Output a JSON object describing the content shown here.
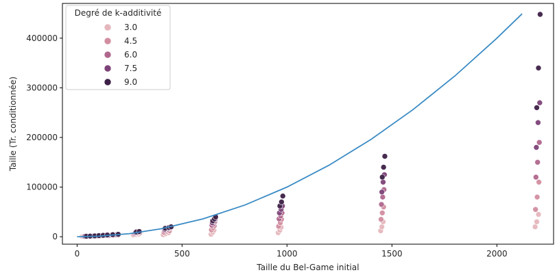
{
  "chart_data": {
    "type": "scatter",
    "title": "",
    "xlabel": "Taille du Bel-Game initial",
    "ylabel": "Taille (Tr. conditionnée)",
    "xlim": [
      -70,
      2270
    ],
    "ylim": [
      -15000,
      470000
    ],
    "xticks": [
      0,
      500,
      1000,
      1500,
      2000
    ],
    "yticks": [
      0,
      100000,
      200000,
      300000,
      400000
    ],
    "grid": false,
    "legend": {
      "title": "Degré de k-additivité",
      "placement": "top-left",
      "entries": [
        {
          "label": "3.0",
          "color": "#e5b7bd"
        },
        {
          "label": "4.5",
          "color": "#d28ea0"
        },
        {
          "label": "6.0",
          "color": "#b0678d"
        },
        {
          "label": "7.5",
          "color": "#7d4378"
        },
        {
          "label": "9.0",
          "color": "#3d2147"
        }
      ]
    },
    "series": [
      {
        "type": "line",
        "color": "#3a8bc4",
        "x": [
          0,
          100,
          250,
          400,
          600,
          800,
          1000,
          1200,
          1400,
          1600,
          1800,
          2000,
          2120
        ],
        "y": [
          0,
          1000,
          6200,
          16000,
          36000,
          64000,
          100000,
          144000,
          196000,
          256000,
          324000,
          400000,
          449000
        ]
      },
      {
        "type": "scatter",
        "hue": 3.0,
        "color": "#e5b7bd",
        "x": [
          24,
          40,
          55,
          70,
          88,
          110,
          125,
          150,
          172,
          195,
          268,
          280,
          292,
          410,
          422,
          436,
          638,
          646,
          652,
          958,
          966,
          972,
          1446,
          1452,
          1458,
          2182,
          2190,
          2198
        ],
        "y": [
          300,
          400,
          500,
          700,
          900,
          1300,
          1500,
          2000,
          2400,
          2900,
          3500,
          4200,
          5000,
          4000,
          6000,
          8000,
          5000,
          9000,
          13000,
          8000,
          13000,
          19000,
          12000,
          20000,
          30000,
          20000,
          30000,
          45000
        ]
      },
      {
        "type": "scatter",
        "hue": 4.5,
        "color": "#d28ea0",
        "x": [
          30,
          48,
          65,
          80,
          100,
          118,
          140,
          162,
          186,
          272,
          286,
          298,
          414,
          428,
          440,
          640,
          648,
          654,
          960,
          968,
          974,
          1448,
          1454,
          1460,
          2184,
          2192,
          2200
        ],
        "y": [
          500,
          600,
          800,
          1100,
          1400,
          1800,
          2200,
          2800,
          3300,
          5500,
          6500,
          7500,
          9000,
          11000,
          12000,
          14000,
          18000,
          22000,
          21000,
          28000,
          35000,
          35000,
          48000,
          60000,
          55000,
          80000,
          110000
        ]
      },
      {
        "type": "scatter",
        "hue": 6.0,
        "color": "#b0678d",
        "x": [
          34,
          52,
          74,
          94,
          114,
          132,
          156,
          180,
          276,
          290,
          416,
          432,
          444,
          642,
          650,
          656,
          962,
          970,
          976,
          1450,
          1456,
          1462,
          2186,
          2194,
          2202
        ],
        "y": [
          700,
          900,
          1200,
          1600,
          2000,
          2500,
          3100,
          3800,
          7000,
          8000,
          13000,
          15000,
          17000,
          23000,
          26000,
          30000,
          36000,
          42000,
          48000,
          65000,
          80000,
          95000,
          120000,
          150000,
          190000
        ]
      },
      {
        "type": "scatter",
        "hue": 7.5,
        "color": "#7d4378",
        "x": [
          38,
          58,
          78,
          98,
          120,
          136,
          166,
          190,
          278,
          294,
          418,
          434,
          446,
          644,
          652,
          658,
          964,
          972,
          978,
          1452,
          1458,
          1464,
          2188,
          2196,
          2204
        ],
        "y": [
          900,
          1100,
          1500,
          1900,
          2500,
          3000,
          3700,
          4500,
          8500,
          9500,
          15000,
          17000,
          19000,
          28000,
          32000,
          36000,
          48000,
          55000,
          62000,
          90000,
          110000,
          125000,
          180000,
          230000,
          270000
        ]
      },
      {
        "type": "scatter",
        "hue": 9.0,
        "color": "#3d2147",
        "x": [
          44,
          62,
          84,
          104,
          124,
          144,
          170,
          196,
          282,
          296,
          420,
          438,
          448,
          646,
          654,
          660,
          966,
          974,
          980,
          1454,
          1460,
          1466,
          2190,
          2198,
          2206
        ],
        "y": [
          1000,
          1300,
          1700,
          2200,
          2800,
          3400,
          4100,
          4800,
          9500,
          10500,
          17000,
          18500,
          20000,
          32000,
          36000,
          40000,
          62000,
          70000,
          82000,
          120000,
          140000,
          162000,
          260000,
          340000,
          448000
        ]
      }
    ]
  }
}
